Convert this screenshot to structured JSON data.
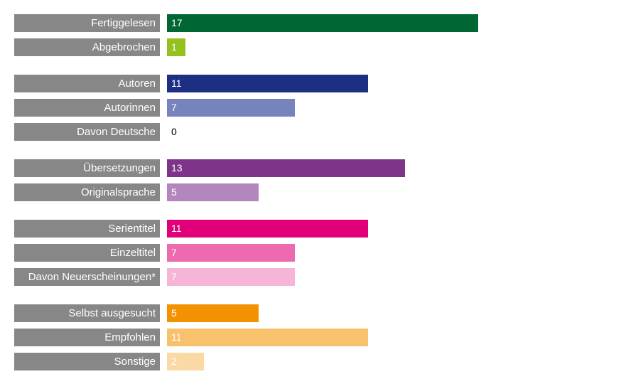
{
  "chart_data": {
    "type": "bar",
    "orientation": "horizontal",
    "xlim": [
      0,
      17
    ],
    "grid": false,
    "groups": [
      {
        "rows": [
          {
            "label": "Fertiggelesen",
            "value": 17,
            "color": "#006633",
            "value_color": "#ffffff"
          },
          {
            "label": "Abgebrochen",
            "value": 1,
            "color": "#95c11f",
            "value_color": "#ffffff"
          }
        ]
      },
      {
        "rows": [
          {
            "label": "Autoren",
            "value": 11,
            "color": "#1d2f83",
            "value_color": "#ffffff"
          },
          {
            "label": "Autorinnen",
            "value": 7,
            "color": "#7683bc",
            "value_color": "#ffffff"
          },
          {
            "label": "Davon Deutsche",
            "value": 0,
            "color": "#ffffff",
            "value_color": "#000000"
          }
        ]
      },
      {
        "rows": [
          {
            "label": "Übersetzungen",
            "value": 13,
            "color": "#7e3489",
            "value_color": "#ffffff"
          },
          {
            "label": "Originalsprache",
            "value": 5,
            "color": "#b386bd",
            "value_color": "#ffffff"
          }
        ]
      },
      {
        "rows": [
          {
            "label": "Serientitel",
            "value": 11,
            "color": "#e1007a",
            "value_color": "#ffffff"
          },
          {
            "label": "Einzeltitel",
            "value": 7,
            "color": "#ec6aad",
            "value_color": "#ffffff"
          },
          {
            "label": "Davon Neuerscheinungen*",
            "value": 7,
            "color": "#f6b4d6",
            "value_color": "#ffffff"
          }
        ]
      },
      {
        "rows": [
          {
            "label": "Selbst ausgesucht",
            "value": 5,
            "color": "#f39200",
            "value_color": "#ffffff"
          },
          {
            "label": "Empfohlen",
            "value": 11,
            "color": "#f8c16b",
            "value_color": "#ffffff"
          },
          {
            "label": "Sonstige",
            "value": 2,
            "color": "#fbd9a4",
            "value_color": "#ffffff"
          }
        ]
      }
    ]
  }
}
